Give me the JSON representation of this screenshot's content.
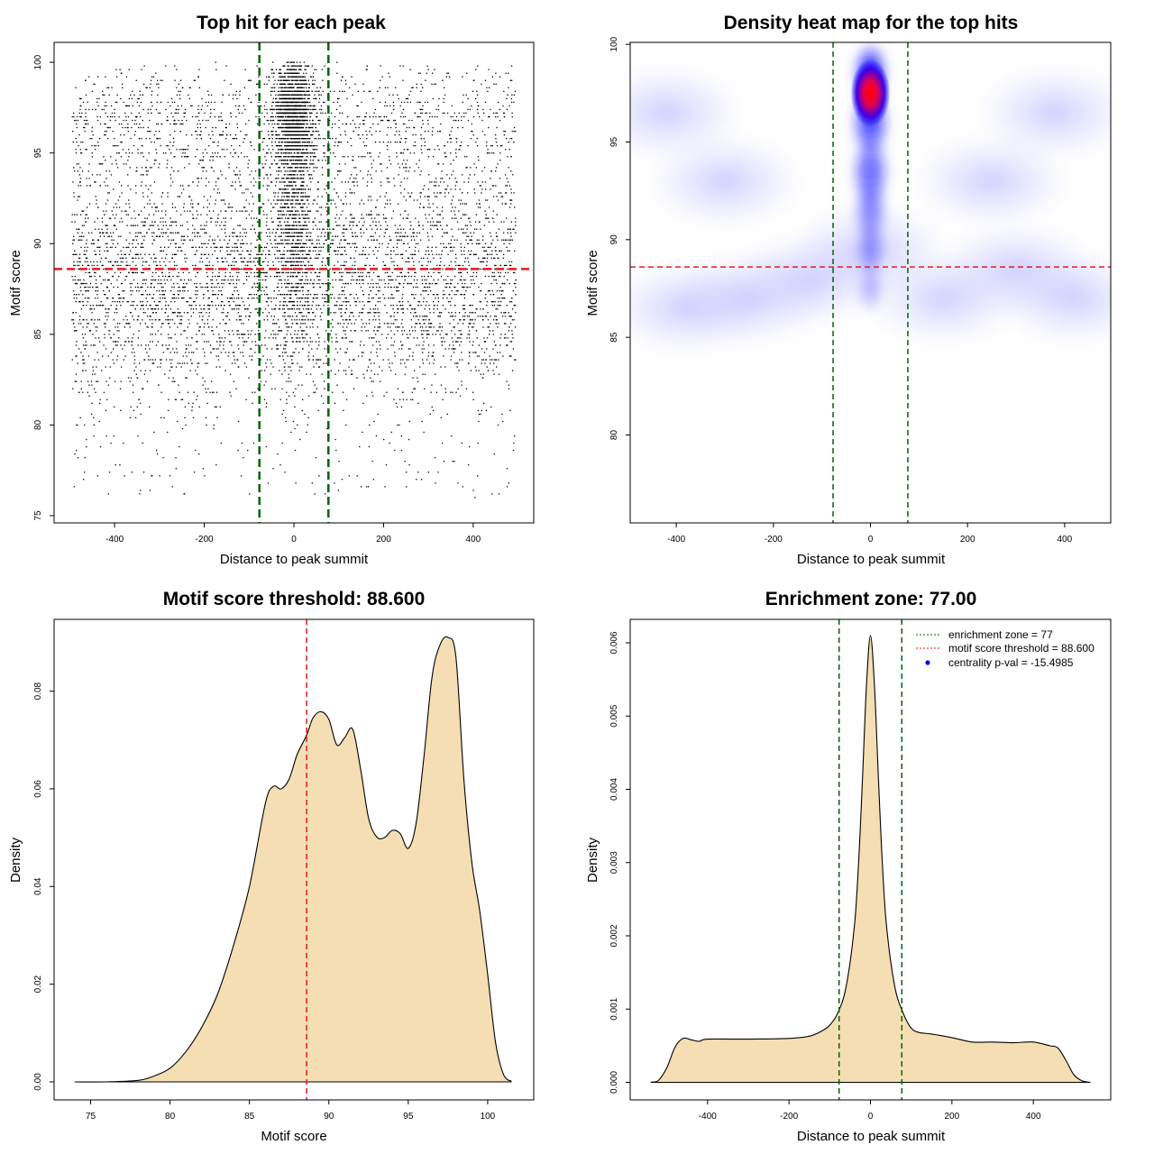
{
  "chart_data": [
    {
      "id": "scatter",
      "type": "scatter",
      "title": "Top hit for each peak",
      "xlabel": "Distance to peak summit",
      "ylabel": "Motif score",
      "xlim": [
        -535,
        535
      ],
      "ylim": [
        74.6,
        101.1
      ],
      "xticks": [
        -400,
        -200,
        0,
        200,
        400
      ],
      "yticks": [
        75,
        80,
        85,
        90,
        95,
        100
      ],
      "enrichment_zone": 77,
      "motif_score_threshold": 88.6,
      "point_count_estimate": 9000,
      "colors": {
        "points": "#000000",
        "threshold": "#e41a1c",
        "zone": "#006400"
      }
    },
    {
      "id": "heatmap",
      "type": "heatmap",
      "title": "Density heat map for the top hits",
      "xlabel": "Distance to peak summit",
      "ylabel": "Motif score",
      "xlim": [
        -495,
        495
      ],
      "ylim": [
        75.5,
        100.1
      ],
      "xticks": [
        -400,
        -200,
        0,
        200,
        400
      ],
      "yticks": [
        80,
        85,
        90,
        95,
        100
      ],
      "enrichment_zone": 77,
      "motif_score_threshold": 88.6,
      "density_peak": {
        "x": 0,
        "y": 97.5
      },
      "colors": {
        "low": "#ffffff",
        "mid": "#0000ff",
        "high": "#ff0000",
        "threshold": "#e41a1c",
        "zone": "#006400"
      }
    },
    {
      "id": "score_density",
      "type": "area",
      "title": "Motif score threshold: 88.600",
      "xlabel": "Motif score",
      "ylabel": "Density",
      "xlim": [
        72.7,
        102.9
      ],
      "ylim": [
        -0.0037,
        0.0947
      ],
      "xticks": [
        75,
        80,
        85,
        90,
        95,
        100
      ],
      "yticks": [
        0.0,
        0.02,
        0.04,
        0.06,
        0.08
      ],
      "ytick_labels": [
        "0.00",
        "0.02",
        "0.04",
        "0.06",
        "0.08"
      ],
      "threshold": 88.6,
      "x": [
        74,
        76,
        78,
        79,
        80,
        81,
        82,
        83,
        84,
        85,
        86,
        86.5,
        87,
        87.5,
        88,
        88.6,
        89,
        89.5,
        90,
        90.5,
        91,
        91.5,
        92,
        92.5,
        93,
        93.5,
        94,
        94.5,
        95,
        95.5,
        96,
        96.5,
        97,
        97.5,
        98,
        98.5,
        99,
        99.5,
        100,
        100.5,
        101,
        101.5
      ],
      "y": [
        0.0,
        0.0,
        0.0003,
        0.0012,
        0.0028,
        0.0062,
        0.0112,
        0.018,
        0.028,
        0.04,
        0.057,
        0.0605,
        0.06,
        0.062,
        0.067,
        0.071,
        0.0745,
        0.0758,
        0.0742,
        0.069,
        0.0705,
        0.0722,
        0.064,
        0.054,
        0.0502,
        0.05,
        0.0515,
        0.0508,
        0.0478,
        0.053,
        0.067,
        0.083,
        0.0895,
        0.091,
        0.087,
        0.062,
        0.045,
        0.035,
        0.022,
        0.008,
        0.0015,
        0.0001
      ],
      "colors": {
        "fill": "#f5deb3",
        "line": "#000000",
        "threshold": "#e41a1c"
      }
    },
    {
      "id": "distance_density",
      "type": "area",
      "title": "Enrichment zone: 77.00",
      "xlabel": "Distance to peak summit",
      "ylabel": "Density",
      "xlim": [
        -590,
        590
      ],
      "ylim": [
        -0.00024,
        0.00632
      ],
      "xticks": [
        -400,
        -200,
        0,
        200,
        400
      ],
      "yticks": [
        0.0,
        0.001,
        0.002,
        0.003,
        0.004,
        0.005,
        0.006
      ],
      "ytick_labels": [
        "0.000",
        "0.001",
        "0.002",
        "0.003",
        "0.004",
        "0.005",
        "0.006"
      ],
      "enrichment_zone": 77,
      "x": [
        -540,
        -520,
        -500,
        -480,
        -460,
        -440,
        -420,
        -400,
        -300,
        -200,
        -150,
        -120,
        -100,
        -80,
        -60,
        -40,
        -30,
        -20,
        -10,
        0,
        10,
        20,
        30,
        40,
        60,
        80,
        100,
        120,
        150,
        200,
        250,
        300,
        350,
        400,
        440,
        460,
        480,
        500,
        520,
        540
      ],
      "y": [
        0.0,
        3e-05,
        0.0002,
        0.00048,
        0.0006,
        0.00058,
        0.00056,
        0.00059,
        0.00059,
        0.0006,
        0.00063,
        0.0007,
        0.00078,
        0.00095,
        0.0013,
        0.0021,
        0.0029,
        0.0041,
        0.0054,
        0.0061,
        0.0054,
        0.0041,
        0.0029,
        0.0021,
        0.0013,
        0.00095,
        0.00074,
        0.00068,
        0.00066,
        0.00061,
        0.00055,
        0.00055,
        0.00054,
        0.00055,
        0.0005,
        0.00047,
        0.0003,
        0.0001,
        2e-05,
        0.0
      ],
      "legend": [
        {
          "label": "enrichment zone = 77",
          "style": "dotted-line",
          "color": "#006400"
        },
        {
          "label": "motif score threshold = 88.600",
          "style": "dotted-line",
          "color": "#e41a1c"
        },
        {
          "label": "centrality p-val = -15.4985",
          "style": "dot",
          "color": "#0000ff"
        }
      ],
      "legend_position": "top-right",
      "colors": {
        "fill": "#f5deb3",
        "line": "#000000",
        "zone": "#006400"
      }
    }
  ]
}
